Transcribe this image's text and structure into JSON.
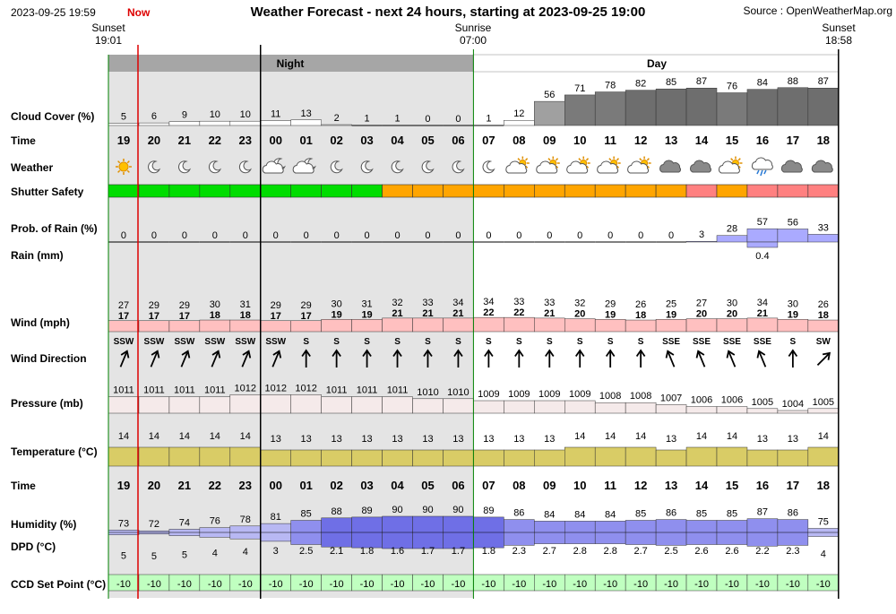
{
  "header": {
    "timestamp": "2023-09-25 19:59",
    "now_label": "Now",
    "title": "Weather Forecast - next 24 hours, starting at 2023-09-25 19:00",
    "source": "Source : OpenWeatherMap.org"
  },
  "sun_events": [
    {
      "name": "Sunset",
      "time": "19:01"
    },
    {
      "name": "Sunrise",
      "time": "07:00"
    },
    {
      "name": "Sunset",
      "time": "18:58"
    }
  ],
  "period_labels": {
    "night": "Night",
    "day": "Day"
  },
  "row_labels": {
    "cloud": "Cloud Cover (%)",
    "time": "Time",
    "weather": "Weather",
    "shutter": "Shutter Safety",
    "rain_prob": "Prob. of Rain (%)",
    "rain_mm": "Rain (mm)",
    "wind": "Wind (mph)",
    "wind_dir": "Wind Direction",
    "pressure": "Pressure (mb)",
    "temperature": "Temperature (°C)",
    "time2": "Time",
    "humidity": "Humidity (%)",
    "dpd": "DPD (°C)",
    "ccd": "CCD Set Point (°C)"
  },
  "colors": {
    "night_bg": "#e4e4e4",
    "band_header": "#a6a6a6",
    "now_line": "#dd0000",
    "green_line": "#008000",
    "shutter_green": "#00dd00",
    "shutter_orange": "#ffa500",
    "shutter_red": "#ff8080",
    "wind_fill": "#ffc0c0",
    "temp_fill": "#d9cc66",
    "humidity_fill": "#9999ee",
    "ccd_fill": "#c0ffc0",
    "rain_fill": "#aaaaff"
  },
  "chart_data": {
    "type": "table",
    "hours": [
      "19",
      "20",
      "21",
      "22",
      "23",
      "00",
      "01",
      "02",
      "03",
      "04",
      "05",
      "06",
      "07",
      "08",
      "09",
      "10",
      "11",
      "12",
      "13",
      "14",
      "15",
      "16",
      "17",
      "18"
    ],
    "cloud_cover": [
      5,
      6,
      9,
      10,
      10,
      11,
      13,
      2,
      1,
      1,
      0,
      0,
      1,
      12,
      56,
      71,
      78,
      82,
      85,
      87,
      76,
      84,
      88,
      87
    ],
    "weather_icons": [
      "sun",
      "moon",
      "moon",
      "moon",
      "moon",
      "moon-cloud",
      "moon-cloud",
      "moon",
      "moon",
      "moon",
      "moon",
      "moon",
      "moon",
      "sun-cloud",
      "sun-cloud",
      "sun-cloud",
      "sun-cloud",
      "sun-cloud",
      "cloud",
      "cloud",
      "sun-cloud",
      "rain-cloud",
      "cloud",
      "cloud"
    ],
    "shutter_safety": [
      "green",
      "green",
      "green",
      "green",
      "green",
      "green",
      "green",
      "green",
      "green",
      "orange",
      "orange",
      "orange",
      "orange",
      "orange",
      "orange",
      "orange",
      "orange",
      "orange",
      "orange",
      "red",
      "orange",
      "red",
      "red",
      "red"
    ],
    "rain_probability": [
      0,
      0,
      0,
      0,
      0,
      0,
      0,
      0,
      0,
      0,
      0,
      0,
      0,
      0,
      0,
      0,
      0,
      0,
      0,
      3,
      28,
      57,
      56,
      33
    ],
    "rain_mm": [
      null,
      null,
      null,
      null,
      null,
      null,
      null,
      null,
      null,
      null,
      null,
      null,
      null,
      null,
      null,
      null,
      null,
      null,
      null,
      null,
      null,
      0.4,
      null,
      null
    ],
    "wind_gust": [
      27,
      29,
      29,
      30,
      31,
      29,
      29,
      30,
      31,
      32,
      33,
      34,
      34,
      33,
      33,
      32,
      29,
      26,
      25,
      27,
      30,
      34,
      30,
      26
    ],
    "wind_speed": [
      17,
      17,
      17,
      18,
      18,
      17,
      17,
      19,
      19,
      21,
      21,
      21,
      22,
      22,
      21,
      20,
      19,
      18,
      19,
      20,
      20,
      21,
      19,
      18
    ],
    "wind_direction": [
      "SSW",
      "SSW",
      "SSW",
      "SSW",
      "SSW",
      "SSW",
      "S",
      "S",
      "S",
      "S",
      "S",
      "S",
      "S",
      "S",
      "S",
      "S",
      "S",
      "S",
      "SSE",
      "SSE",
      "SSE",
      "SSE",
      "S",
      "SW"
    ],
    "pressure": [
      1011,
      1011,
      1011,
      1011,
      1012,
      1012,
      1012,
      1011,
      1011,
      1011,
      1010,
      1010,
      1009,
      1009,
      1009,
      1009,
      1008,
      1008,
      1007,
      1006,
      1006,
      1005,
      1004,
      1005
    ],
    "temperature": [
      14,
      14,
      14,
      14,
      14,
      13,
      13,
      13,
      13,
      13,
      13,
      13,
      13,
      13,
      13,
      14,
      14,
      14,
      13,
      14,
      14,
      13,
      13,
      14
    ],
    "humidity": [
      73,
      72,
      74,
      76,
      78,
      81,
      85,
      88,
      89,
      90,
      90,
      90,
      89,
      86,
      84,
      84,
      84,
      85,
      86,
      85,
      85,
      87,
      86,
      75
    ],
    "dpd": [
      "5",
      "5",
      "5",
      "4",
      "4",
      "3",
      "2.5",
      "2.1",
      "1.8",
      "1.6",
      "1.7",
      "1.7",
      "1.8",
      "2.3",
      "2.7",
      "2.8",
      "2.8",
      "2.7",
      "2.5",
      "2.6",
      "2.6",
      "2.2",
      "2.3",
      "4"
    ],
    "ccd_set_point": [
      -10,
      -10,
      -10,
      -10,
      -10,
      -10,
      -10,
      -10,
      -10,
      -10,
      -10,
      -10,
      -10,
      -10,
      -10,
      -10,
      -10,
      -10,
      -10,
      -10,
      -10,
      -10,
      -10,
      -10
    ]
  }
}
